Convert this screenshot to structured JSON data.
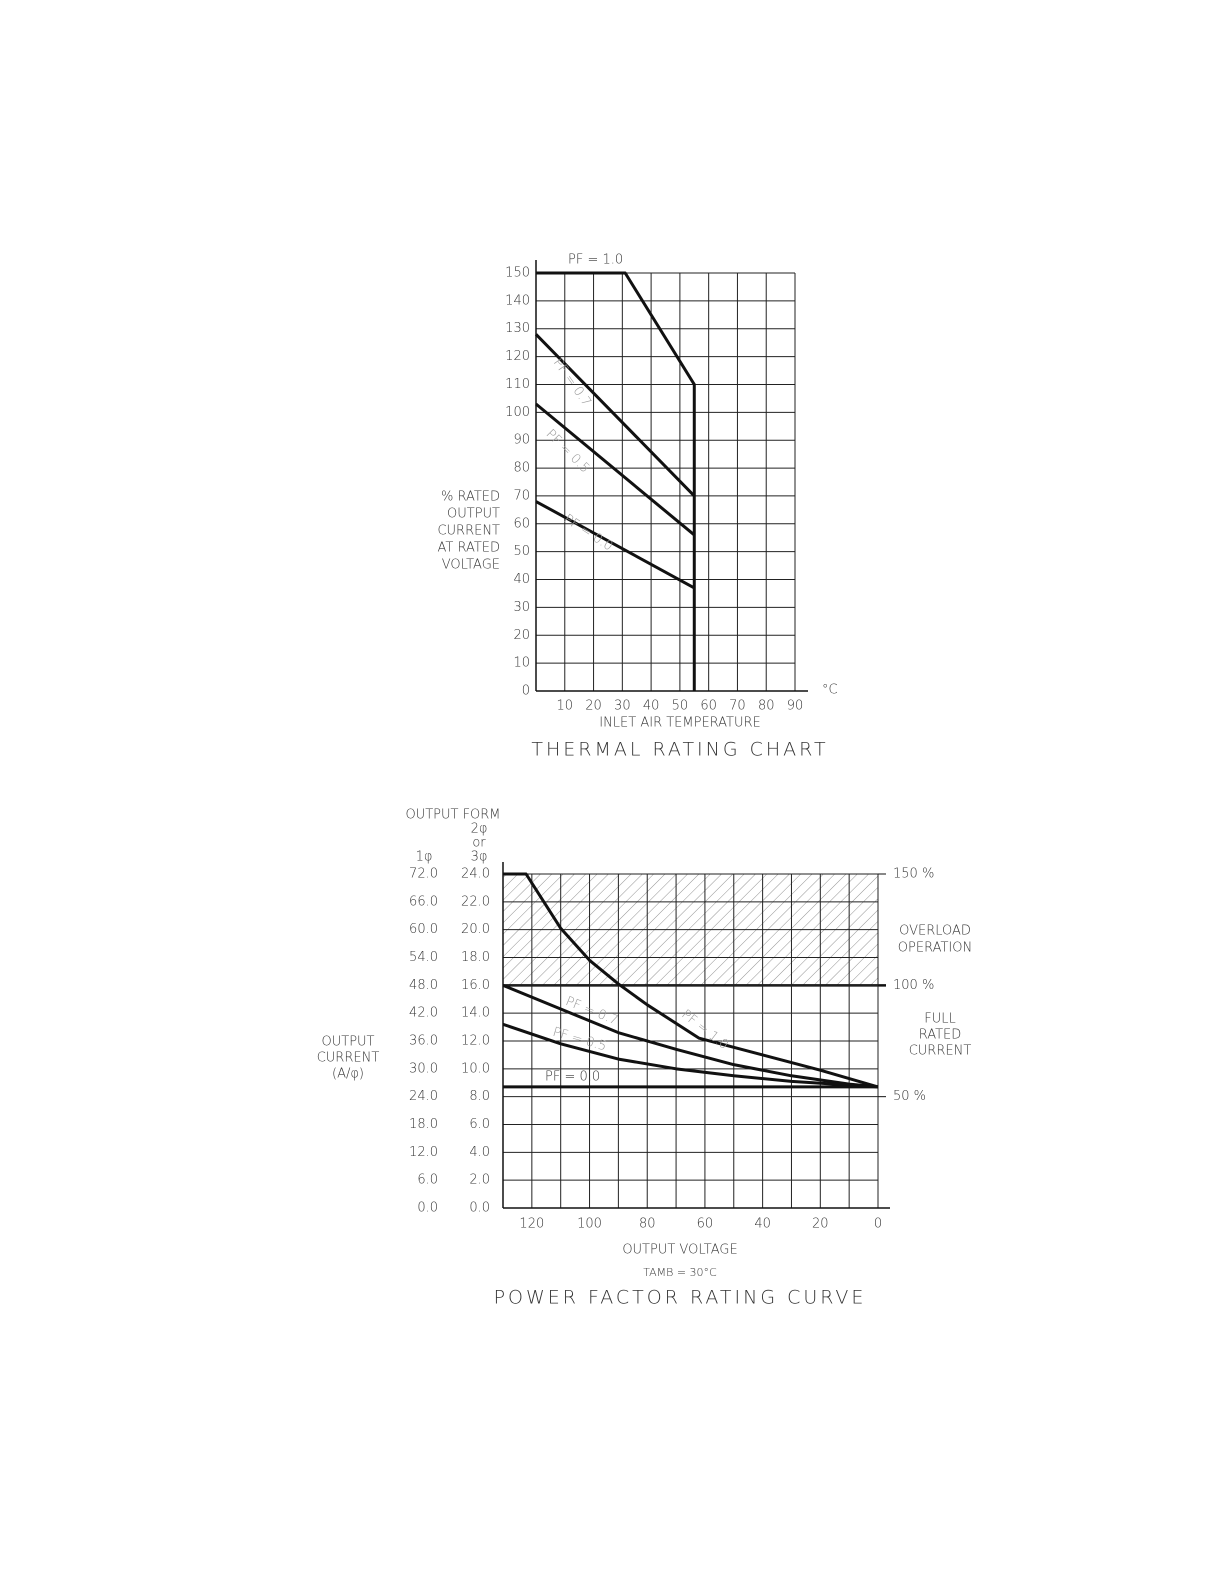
{
  "chart_data": [
    {
      "type": "line",
      "title": "THERMAL RATING CHART",
      "x_label": "INLET AIR TEMPERATURE",
      "x_unit": "°C",
      "y_label": [
        "% RATED",
        "OUTPUT",
        "CURRENT",
        "AT RATED",
        "VOLTAGE"
      ],
      "xlim": [
        0,
        90
      ],
      "ylim": [
        0,
        150
      ],
      "xticks": [
        10,
        20,
        30,
        40,
        50,
        60,
        70,
        80,
        90
      ],
      "yticks": [
        0,
        10,
        20,
        30,
        40,
        50,
        60,
        70,
        80,
        90,
        100,
        110,
        120,
        130,
        140,
        150
      ],
      "grid": true,
      "series": [
        {
          "name": "PF = 1.0",
          "color": "#111111",
          "x": [
            0,
            31,
            55,
            55
          ],
          "values": [
            150,
            150,
            110,
            0
          ]
        },
        {
          "name": "PF = 0.7",
          "color": "#111111",
          "x": [
            0,
            55
          ],
          "values": [
            128,
            70
          ]
        },
        {
          "name": "PF = 0.5",
          "color": "#111111",
          "x": [
            0,
            55
          ],
          "values": [
            103,
            56
          ]
        },
        {
          "name": "PF = 0.0",
          "color": "#111111",
          "x": [
            0,
            55
          ],
          "values": [
            68,
            37
          ]
        }
      ]
    },
    {
      "type": "line",
      "title": "POWER FACTOR RATING CURVE",
      "x_label": "OUTPUT VOLTAGE",
      "note": "TAMB = 30°C",
      "column_header": "OUTPUT FORM",
      "y_header": [
        "2φ",
        "or",
        "3φ"
      ],
      "y2_header": "1φ",
      "y_label": [
        "OUTPUT",
        "CURRENT",
        "(A/φ)"
      ],
      "overload_label": [
        "OVERLOAD",
        "OPERATION"
      ],
      "full_rated_label": [
        "FULL",
        "RATED",
        "CURRENT"
      ],
      "xlim": [
        130,
        0
      ],
      "xticks": [
        120,
        100,
        80,
        60,
        40,
        20,
        0
      ],
      "xminor": [
        130,
        110,
        90,
        70,
        50,
        30,
        10
      ],
      "ylim": [
        0,
        24
      ],
      "yticks": [
        {
          "value": 0,
          "label": "0.0"
        },
        {
          "value": 2,
          "label": "2.0"
        },
        {
          "value": 4,
          "label": "4.0"
        },
        {
          "value": 6,
          "label": "6.0"
        },
        {
          "value": 8,
          "label": "8.0"
        },
        {
          "value": 10,
          "label": "10.0"
        },
        {
          "value": 12,
          "label": "12.0"
        },
        {
          "value": 14,
          "label": "14.0"
        },
        {
          "value": 16,
          "label": "16.0"
        },
        {
          "value": 18,
          "label": "18.0"
        },
        {
          "value": 20,
          "label": "20.0"
        },
        {
          "value": 22,
          "label": "22.0"
        },
        {
          "value": 24,
          "label": "24.0"
        }
      ],
      "y2lim": [
        0,
        72
      ],
      "y2ticks": [
        {
          "value": 0,
          "label": "0.0"
        },
        {
          "value": 6,
          "label": "6.0"
        },
        {
          "value": 12,
          "label": "12.0"
        },
        {
          "value": 18,
          "label": "18.0"
        },
        {
          "value": 24,
          "label": "24.0"
        },
        {
          "value": 30,
          "label": "30.0"
        },
        {
          "value": 36,
          "label": "36.0"
        },
        {
          "value": 42,
          "label": "42.0"
        },
        {
          "value": 48,
          "label": "48.0"
        },
        {
          "value": 54,
          "label": "54.0"
        },
        {
          "value": 60,
          "label": "60.0"
        },
        {
          "value": 66,
          "label": "66.0"
        },
        {
          "value": 72,
          "label": "72.0"
        }
      ],
      "y3lim": [
        0,
        150
      ],
      "y3ticks": [
        {
          "value": 50,
          "label": "50 %"
        },
        {
          "value": 100,
          "label": "100 %"
        },
        {
          "value": 150,
          "label": "150 %"
        }
      ],
      "shaded_band": [
        16,
        24
      ],
      "grid": true,
      "series": [
        {
          "name": "PF = 1.0",
          "color": "#111111",
          "x": [
            130,
            122,
            110,
            100,
            90,
            80,
            62,
            40,
            20,
            0
          ],
          "values": [
            24,
            24,
            20.1,
            17.8,
            16.1,
            14.6,
            12.2,
            11.0,
            9.9,
            8.7
          ]
        },
        {
          "name": "PF = 0.7",
          "color": "#111111",
          "x": [
            130,
            110,
            90,
            70,
            50,
            30,
            10,
            0
          ],
          "values": [
            16,
            14.3,
            12.6,
            11.4,
            10.3,
            9.5,
            8.9,
            8.7
          ]
        },
        {
          "name": "PF = 0.5",
          "color": "#111111",
          "x": [
            130,
            110,
            90,
            70,
            50,
            30,
            0
          ],
          "values": [
            13.2,
            11.8,
            10.7,
            10.0,
            9.5,
            9.1,
            8.7
          ]
        },
        {
          "name": "PF = 0.0",
          "color": "#111111",
          "x": [
            130,
            0
          ],
          "values": [
            8.7,
            8.7
          ]
        }
      ]
    }
  ]
}
